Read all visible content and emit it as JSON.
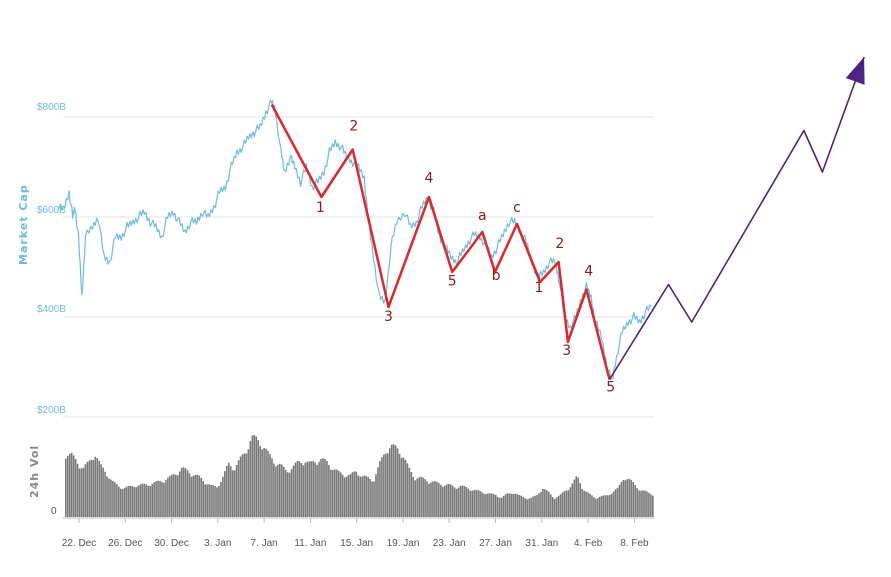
{
  "chart_data": {
    "type": "line",
    "title": "",
    "ylabel": "Market Cap",
    "y_ticks": [
      "$800B",
      "$600B",
      "$400B",
      "$200B"
    ],
    "ylim_market_cap": [
      200,
      820
    ],
    "grid": true,
    "x_ticks": [
      "22. Dec",
      "26. Dec",
      "30. Dec",
      "3. Jan",
      "7. Jan",
      "11. Jan",
      "15. Jan",
      "19. Jan",
      "23. Jan",
      "27. Jan",
      "31. Jan",
      "4. Feb",
      "8. Feb"
    ],
    "x_tick_index": [
      0,
      4,
      8,
      12,
      16,
      20,
      24,
      28,
      32,
      36,
      40,
      44,
      48
    ],
    "volume": {
      "label": "24h Vol",
      "zero_label": "0"
    },
    "series": [
      {
        "color": "#6cbbe0",
        "points": [
          [
            -1.5,
            620
          ],
          [
            -1,
            615
          ],
          [
            -0.5,
            650
          ],
          [
            -0.2,
            600
          ],
          [
            0,
            620
          ],
          [
            0.3,
            560
          ],
          [
            0.6,
            440
          ],
          [
            0.9,
            560
          ],
          [
            1.5,
            580
          ],
          [
            2,
            600
          ],
          [
            2.5,
            520
          ],
          [
            3,
            510
          ],
          [
            3.5,
            560
          ],
          [
            4,
            560
          ],
          [
            4.5,
            580
          ],
          [
            5,
            590
          ],
          [
            5.5,
            600
          ],
          [
            6,
            610
          ],
          [
            6.5,
            590
          ],
          [
            7,
            580
          ],
          [
            7.5,
            560
          ],
          [
            8,
            600
          ],
          [
            8.5,
            610
          ],
          [
            9,
            590
          ],
          [
            9.5,
            570
          ],
          [
            10,
            590
          ],
          [
            10.5,
            590
          ],
          [
            11,
            610
          ],
          [
            11.5,
            600
          ],
          [
            12,
            620
          ],
          [
            12.5,
            650
          ],
          [
            13,
            660
          ],
          [
            13.5,
            700
          ],
          [
            14,
            730
          ],
          [
            14.5,
            740
          ],
          [
            15,
            760
          ],
          [
            15.5,
            770
          ],
          [
            16,
            780
          ],
          [
            16.5,
            810
          ],
          [
            17,
            830
          ],
          [
            17.3,
            815
          ],
          [
            17.8,
            730
          ],
          [
            18.1,
            690
          ],
          [
            18.6,
            720
          ],
          [
            19,
            700
          ],
          [
            19.5,
            670
          ],
          [
            20,
            700
          ],
          [
            20.5,
            660
          ],
          [
            21,
            670
          ],
          [
            21.5,
            690
          ],
          [
            22,
            730
          ],
          [
            22.5,
            750
          ],
          [
            23,
            740
          ],
          [
            23.5,
            720
          ],
          [
            24,
            710
          ],
          [
            24.5,
            700
          ],
          [
            25,
            680
          ],
          [
            25.3,
            600
          ],
          [
            25.8,
            520
          ],
          [
            26.3,
            440
          ],
          [
            26.8,
            430
          ],
          [
            27.3,
            540
          ],
          [
            27.8,
            590
          ],
          [
            28.5,
            610
          ],
          [
            29,
            580
          ],
          [
            29.5,
            590
          ],
          [
            30,
            620
          ],
          [
            30.5,
            640
          ],
          [
            31,
            610
          ],
          [
            31.5,
            560
          ],
          [
            32,
            540
          ],
          [
            32.5,
            520
          ],
          [
            33,
            510
          ],
          [
            33.5,
            530
          ],
          [
            34,
            550
          ],
          [
            34.5,
            565
          ],
          [
            35,
            560
          ],
          [
            35.5,
            545
          ],
          [
            36,
            520
          ],
          [
            36.5,
            540
          ],
          [
            37,
            565
          ],
          [
            37.5,
            590
          ],
          [
            38,
            590
          ],
          [
            38.5,
            570
          ],
          [
            39,
            550
          ],
          [
            39.5,
            510
          ],
          [
            40,
            480
          ],
          [
            40.5,
            490
          ],
          [
            41,
            510
          ],
          [
            41.5,
            510
          ],
          [
            41.8,
            480
          ],
          [
            42.3,
            400
          ],
          [
            42.8,
            380
          ],
          [
            43.3,
            400
          ],
          [
            43.8,
            440
          ],
          [
            44.2,
            460
          ],
          [
            44.6,
            440
          ],
          [
            45,
            390
          ],
          [
            45.5,
            360
          ],
          [
            46,
            300
          ],
          [
            46.4,
            270
          ],
          [
            46.8,
            320
          ],
          [
            47.3,
            370
          ],
          [
            47.8,
            390
          ],
          [
            48.3,
            400
          ],
          [
            48.8,
            390
          ],
          [
            49.3,
            410
          ],
          [
            49.8,
            420
          ]
        ]
      },
      {
        "color": "#e0262b",
        "points": [
          [
            17,
            825
          ],
          [
            21.3,
            640
          ],
          [
            24,
            735
          ],
          [
            27.1,
            420
          ],
          [
            30.6,
            640
          ],
          [
            32.6,
            490
          ],
          [
            35.2,
            570
          ],
          [
            36.3,
            490
          ],
          [
            38.2,
            586
          ],
          [
            40.2,
            470
          ],
          [
            41.8,
            510
          ],
          [
            42.6,
            350
          ],
          [
            44.2,
            455
          ],
          [
            46.2,
            275
          ]
        ]
      },
      {
        "color": "#4f2383",
        "points": [
          [
            46.2,
            275
          ],
          [
            51.3,
            465
          ],
          [
            53.3,
            390
          ],
          [
            63,
            773
          ],
          [
            64.6,
            690
          ],
          [
            68.2,
            920
          ]
        ]
      }
    ],
    "wave_labels": [
      {
        "text": "1",
        "x": 21.2,
        "y": 610
      },
      {
        "text": "2",
        "x": 24.1,
        "y": 773
      },
      {
        "text": "3",
        "x": 27.1,
        "y": 392
      },
      {
        "text": "4",
        "x": 30.6,
        "y": 669
      },
      {
        "text": "5",
        "x": 32.6,
        "y": 463
      },
      {
        "text": "a",
        "x": 35.2,
        "y": 594
      },
      {
        "text": "b",
        "x": 36.4,
        "y": 474
      },
      {
        "text": "c",
        "x": 38.2,
        "y": 610
      },
      {
        "text": "1",
        "x": 40.1,
        "y": 450
      },
      {
        "text": "2",
        "x": 41.9,
        "y": 538
      },
      {
        "text": "3",
        "x": 42.5,
        "y": 324
      },
      {
        "text": "4",
        "x": 44.4,
        "y": 483
      },
      {
        "text": "5",
        "x": 46.3,
        "y": 251
      }
    ],
    "volume_profile": [
      0.72,
      0.7,
      0.62,
      0.55,
      0.62,
      0.72,
      0.58,
      0.5,
      0.4,
      0.35,
      0.33,
      0.34,
      0.36,
      0.36,
      0.37,
      0.38,
      0.4,
      0.42,
      0.45,
      0.5,
      0.55,
      0.52,
      0.48,
      0.45,
      0.4,
      0.35,
      0.34,
      0.45,
      0.6,
      0.55,
      0.65,
      0.75,
      0.9,
      0.88,
      0.8,
      0.7,
      0.62,
      0.58,
      0.52,
      0.56,
      0.62,
      0.64,
      0.6,
      0.64,
      0.65,
      0.62,
      0.55,
      0.5,
      0.48,
      0.47,
      0.52,
      0.46,
      0.44,
      0.42,
      0.6,
      0.75,
      0.8,
      0.78,
      0.7,
      0.55,
      0.45,
      0.44,
      0.42,
      0.4,
      0.38,
      0.37,
      0.36,
      0.34,
      0.35,
      0.33,
      0.31,
      0.29,
      0.28,
      0.26,
      0.25,
      0.22,
      0.26,
      0.28,
      0.24,
      0.22,
      0.21,
      0.24,
      0.33,
      0.28,
      0.22,
      0.24,
      0.3,
      0.36,
      0.46,
      0.32,
      0.26,
      0.22,
      0.23,
      0.24,
      0.28,
      0.32,
      0.45,
      0.42,
      0.36,
      0.3,
      0.28,
      0.26
    ]
  }
}
